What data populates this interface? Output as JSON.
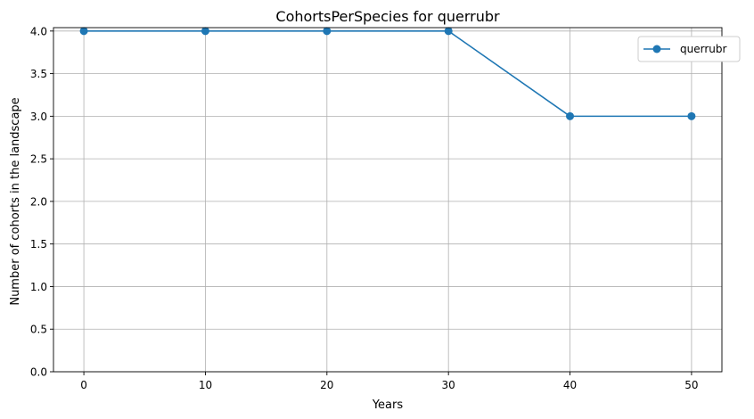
{
  "chart_data": {
    "type": "line",
    "title": "CohortsPerSpecies for querrubr",
    "xlabel": "Years",
    "ylabel": "Number of cohorts in the landscape",
    "x": [
      0,
      10,
      20,
      30,
      40,
      50
    ],
    "series": [
      {
        "name": "querrubr",
        "values": [
          4,
          4,
          4,
          4,
          3,
          3
        ],
        "color": "#1f77b4",
        "marker": "circle"
      }
    ],
    "xlim": [
      -2.5,
      52.5
    ],
    "ylim": [
      0,
      4.04
    ],
    "xticks": [
      0,
      10,
      20,
      30,
      40,
      50
    ],
    "yticks": [
      "0.0",
      "0.5",
      "1.0",
      "1.5",
      "2.0",
      "2.5",
      "3.0",
      "3.5",
      "4.0"
    ],
    "grid": true,
    "legend_position": "top-right"
  }
}
